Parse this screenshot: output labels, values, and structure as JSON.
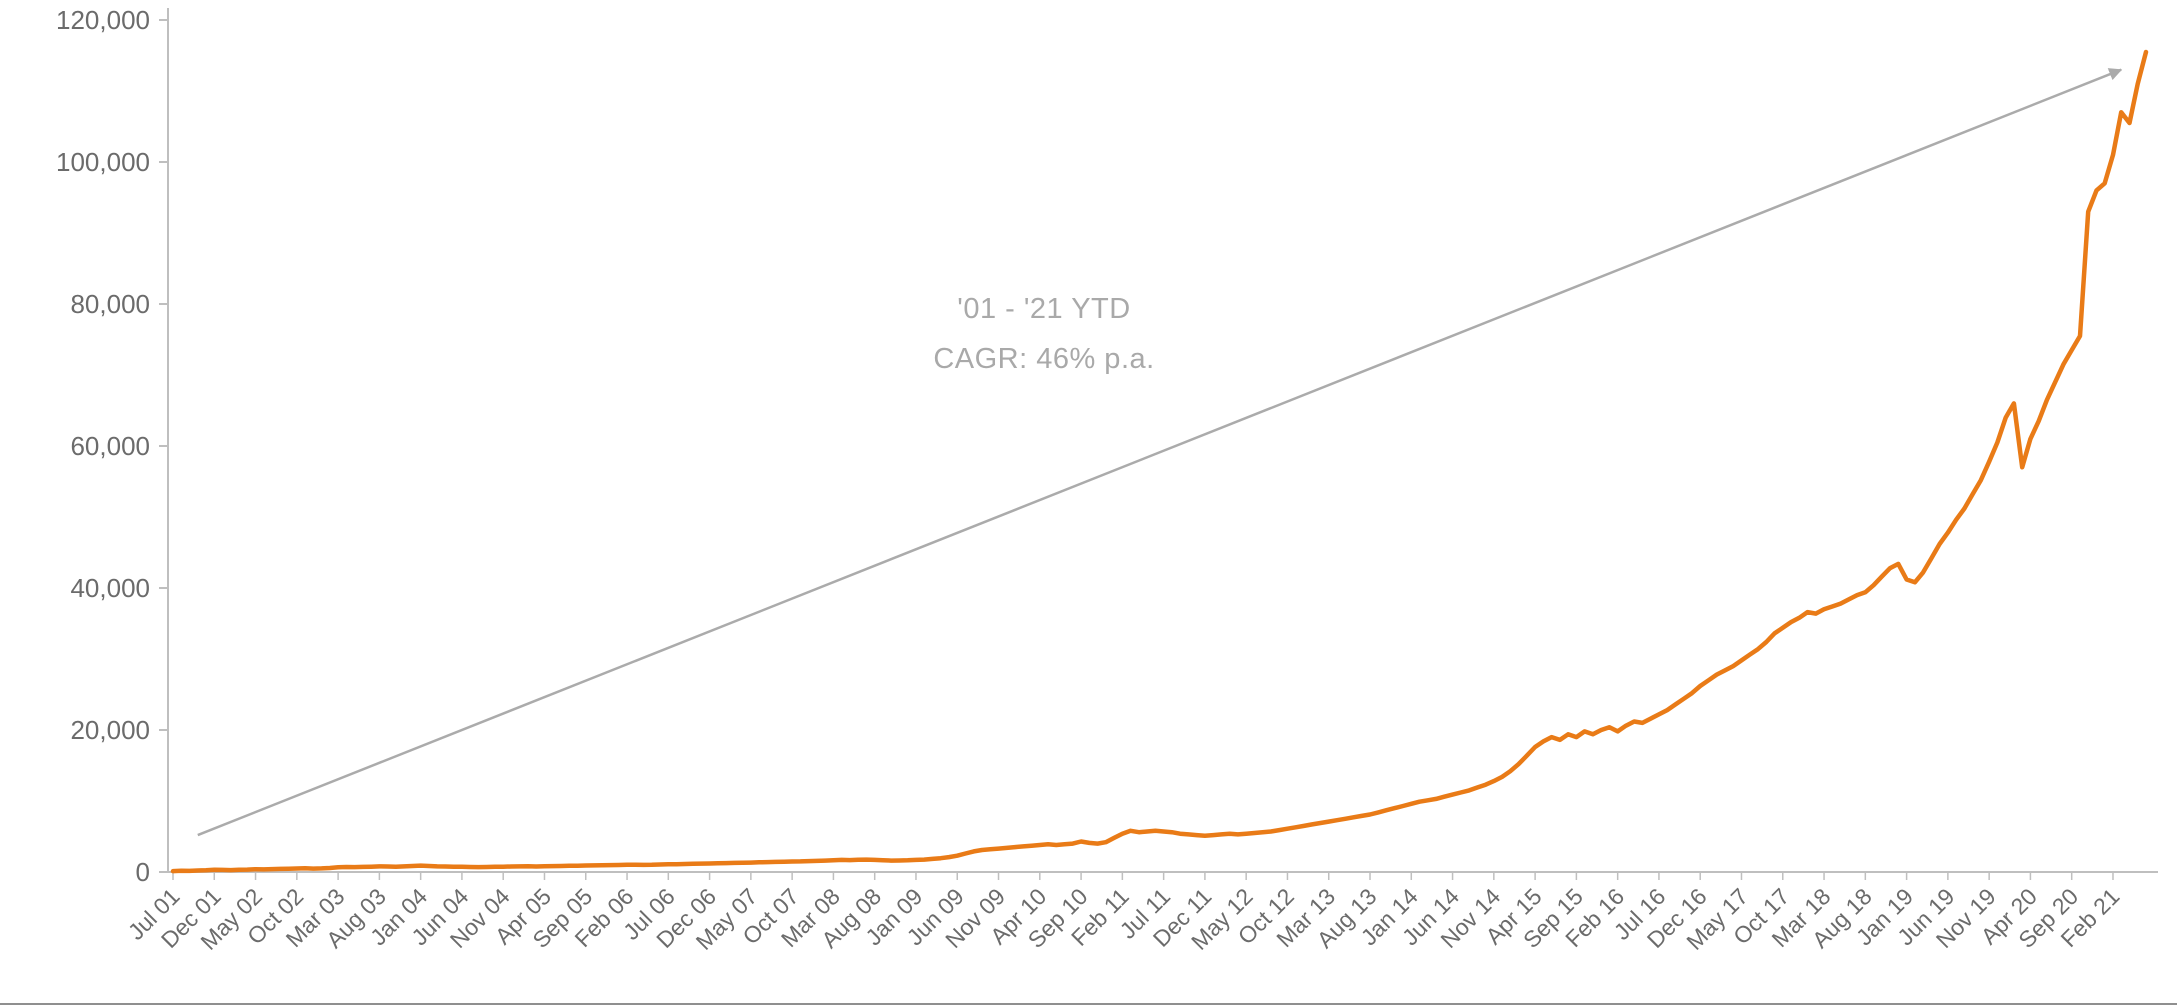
{
  "chart_data": {
    "type": "line",
    "title": "",
    "xlabel": "",
    "ylabel": "",
    "grid": false,
    "legend": "none",
    "ylim": [
      0,
      120000
    ],
    "y_ticks": [
      0,
      20000,
      40000,
      60000,
      80000,
      100000,
      120000
    ],
    "y_tick_labels": [
      "0",
      "20,000",
      "40,000",
      "60,000",
      "80,000",
      "100,000",
      "120,000"
    ],
    "x_tick_interval_months": 5,
    "x_tick_labels": [
      "Jul 01",
      "Dec 01",
      "May 02",
      "Oct 02",
      "Mar 03",
      "Aug 03",
      "Jan 04",
      "Jun 04",
      "Nov 04",
      "Apr 05",
      "Sep 05",
      "Feb 06",
      "Jul 06",
      "Dec 06",
      "May 07",
      "Oct 07",
      "Mar 08",
      "Aug 08",
      "Jan 09",
      "Jun 09",
      "Nov 09",
      "Apr 10",
      "Sep 10",
      "Feb 11",
      "Jul 11",
      "Dec 11",
      "May 12",
      "Oct 12",
      "Mar 13",
      "Aug 13",
      "Jan 14",
      "Jun 14",
      "Nov 14",
      "Apr 15",
      "Sep 15",
      "Feb 16",
      "Jul 16",
      "Dec 16",
      "May 17",
      "Oct 17",
      "Mar 18",
      "Aug 18",
      "Jan 19",
      "Jun 19",
      "Nov 19",
      "Apr 20",
      "Sep 20",
      "Feb 21"
    ],
    "series": [
      {
        "name": "value",
        "color": "#E97B17",
        "frequency": "monthly",
        "start_label": "Jul 01",
        "values": [
          120,
          180,
          160,
          210,
          260,
          330,
          300,
          270,
          310,
          340,
          390,
          370,
          410,
          440,
          470,
          500,
          520,
          480,
          510,
          560,
          660,
          710,
          690,
          720,
          750,
          790,
          770,
          750,
          790,
          840,
          900,
          840,
          790,
          770,
          750,
          730,
          710,
          690,
          710,
          730,
          750,
          770,
          790,
          810,
          780,
          800,
          830,
          850,
          870,
          890,
          910,
          930,
          950,
          970,
          990,
          1010,
          1030,
          1000,
          1020,
          1050,
          1080,
          1100,
          1120,
          1150,
          1180,
          1200,
          1220,
          1250,
          1280,
          1300,
          1330,
          1360,
          1390,
          1420,
          1450,
          1480,
          1500,
          1530,
          1560,
          1600,
          1650,
          1700,
          1680,
          1720,
          1750,
          1700,
          1650,
          1600,
          1620,
          1650,
          1700,
          1750,
          1850,
          1950,
          2100,
          2300,
          2600,
          2900,
          3100,
          3200,
          3300,
          3400,
          3500,
          3600,
          3700,
          3800,
          3900,
          3800,
          3900,
          4000,
          4300,
          4100,
          4000,
          4200,
          4800,
          5400,
          5800,
          5600,
          5700,
          5800,
          5700,
          5600,
          5400,
          5300,
          5200,
          5100,
          5200,
          5300,
          5400,
          5300,
          5400,
          5500,
          5600,
          5700,
          5900,
          6100,
          6300,
          6500,
          6700,
          6900,
          7100,
          7300,
          7500,
          7700,
          7900,
          8100,
          8400,
          8700,
          9000,
          9300,
          9600,
          9900,
          10100,
          10300,
          10600,
          10900,
          11200,
          11500,
          11900,
          12300,
          12800,
          13400,
          14200,
          15200,
          16400,
          17600,
          18400,
          19000,
          18600,
          19400,
          19000,
          19800,
          19400,
          20000,
          20400,
          19800,
          20600,
          21200,
          21000,
          21600,
          22200,
          22800,
          23600,
          24400,
          25200,
          26200,
          27000,
          27800,
          28400,
          29000,
          29800,
          30600,
          31400,
          32400,
          33600,
          34400,
          35200,
          35800,
          36600,
          36400,
          37000,
          37400,
          37800,
          38400,
          39000,
          39400,
          40400,
          41600,
          42800,
          43400,
          41200,
          40800,
          42200,
          44200,
          46200,
          47800,
          49600,
          51200,
          53200,
          55200,
          57800,
          60500,
          64000,
          66000,
          57000,
          61000,
          63500,
          66500,
          69000,
          71500,
          73500,
          75500,
          93000,
          96000,
          97000,
          101000,
          107000,
          105500,
          111000,
          115500
        ]
      }
    ],
    "annotation": {
      "line1": "'01 - '21 YTD",
      "line2": "CAGR: 46% p.a.",
      "color": "#a9a9a9"
    },
    "arrow": {
      "from": {
        "month_index": 3,
        "value": 5200
      },
      "to": {
        "month_index": 236,
        "value": 113000
      },
      "color": "#ababab"
    },
    "axis_color": "#bfbfbf",
    "tick_label_color": "#6b6b6b"
  }
}
